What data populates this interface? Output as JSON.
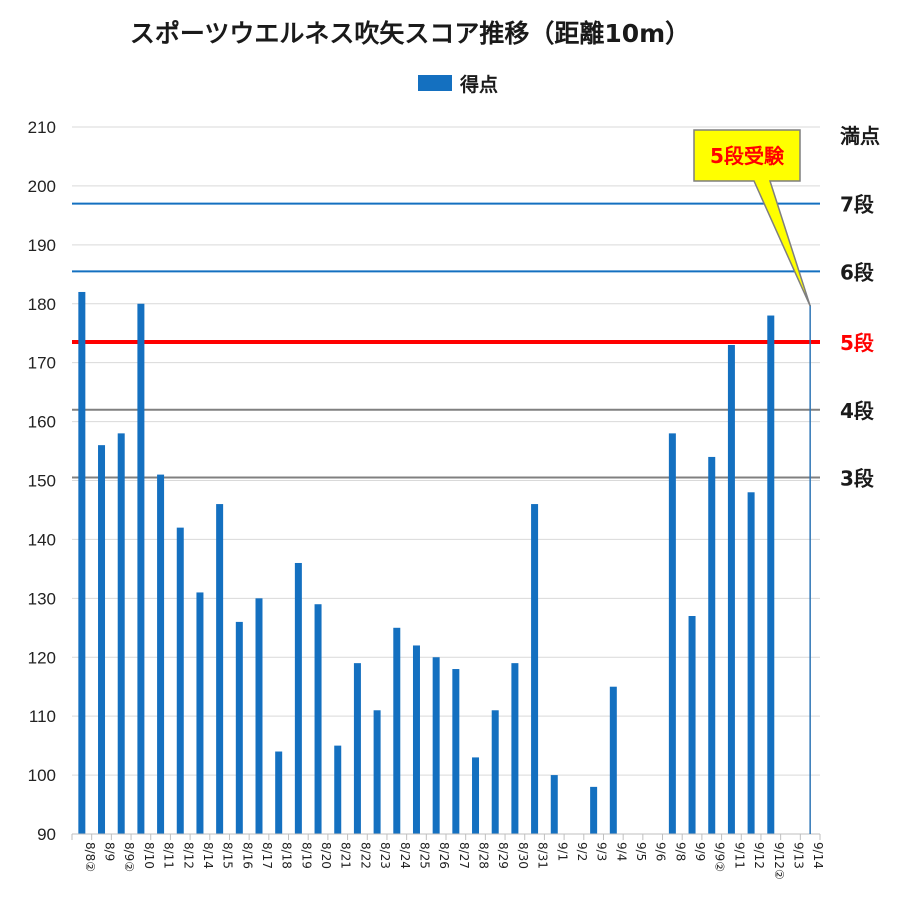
{
  "chart_data": {
    "type": "bar",
    "title": "スポーツウエルネス吹矢スコア推移（距離10m）",
    "legend": {
      "position": "top",
      "entries": [
        "得点"
      ]
    },
    "ylim": [
      90,
      210
    ],
    "yticks": [
      90,
      100,
      110,
      120,
      130,
      140,
      150,
      160,
      170,
      180,
      190,
      200,
      210
    ],
    "grid": true,
    "categories": [
      "8/8②",
      "8/9",
      "8/9②",
      "8/10",
      "8/11",
      "8/12",
      "8/14",
      "8/15",
      "8/16",
      "8/17",
      "8/18",
      "8/19",
      "8/20",
      "8/21",
      "8/22",
      "8/23",
      "8/24",
      "8/25",
      "8/26",
      "8/27",
      "8/28",
      "8/29",
      "8/30",
      "8/31",
      "9/1",
      "9/2",
      "9/3",
      "9/4",
      "9/5",
      "9/6",
      "9/8",
      "9/9",
      "9/9②",
      "9/11",
      "9/12",
      "9/12②",
      "9/13",
      "9/14"
    ],
    "series": [
      {
        "name": "得点",
        "color": "#1470c0",
        "values": [
          182,
          156,
          158,
          180,
          151,
          142,
          131,
          146,
          126,
          130,
          104,
          136,
          129,
          105,
          119,
          111,
          125,
          122,
          120,
          118,
          103,
          111,
          119,
          146,
          100,
          null,
          98,
          115,
          null,
          null,
          158,
          127,
          154,
          173,
          148,
          178,
          null,
          null
        ]
      }
    ],
    "reference_lines": [
      {
        "label": "満点",
        "value": 210,
        "color": "#d9d9d9"
      },
      {
        "label": "7段",
        "value": 197,
        "color": "#1470c0"
      },
      {
        "label": "6段",
        "value": 185.5,
        "color": "#1470c0"
      },
      {
        "label": "5段",
        "value": 173.5,
        "color": "#ff0000"
      },
      {
        "label": "4段",
        "value": 162,
        "color": "#808080"
      },
      {
        "label": "3段",
        "value": 150.5,
        "color": "#808080"
      }
    ],
    "annotation": {
      "text": "5段受験",
      "target_category": "9/14"
    }
  }
}
